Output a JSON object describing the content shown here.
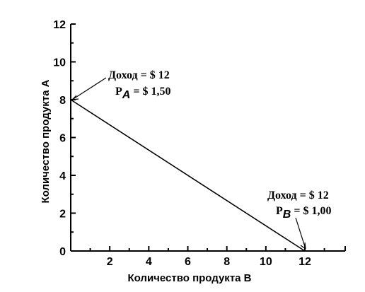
{
  "chart_data": {
    "type": "line",
    "xlabel": "Количество продукта B",
    "ylabel": "Количество продукта A",
    "xlim": [
      0,
      14
    ],
    "ylim": [
      0,
      12
    ],
    "xticks": [
      2,
      4,
      6,
      8,
      10,
      12
    ],
    "yticks": [
      0,
      2,
      4,
      6,
      8,
      10,
      12
    ],
    "series": [
      {
        "x": [
          0,
          12
        ],
        "y": [
          8,
          0
        ]
      }
    ],
    "annotations": [
      {
        "text_line1": "Доход = $ 12",
        "text_line2": "P_A = $ 1,50",
        "point": [
          0,
          8
        ]
      },
      {
        "text_line1": "Доход = $ 12",
        "text_line2": "P_B = $ 1,00",
        "point": [
          12,
          0
        ]
      }
    ]
  }
}
